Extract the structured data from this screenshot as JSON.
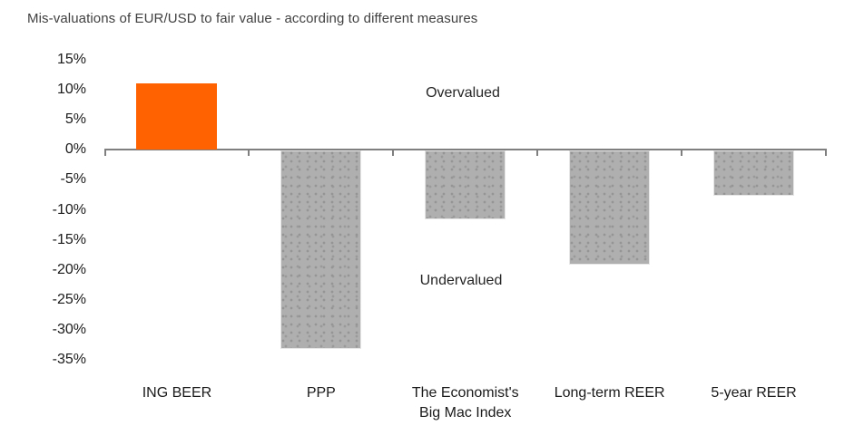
{
  "title": "Mis-valuations of EUR/USD to fair value - according to different measures",
  "annotations": {
    "overvalued": "Overvalued",
    "undervalued": "Undervalued"
  },
  "colors": {
    "highlight_bar": "#FF6200",
    "default_bar": "#ACACAC",
    "axis": "#7F7F7F",
    "title_text": "#404040",
    "axis_text": "#1A1A1A"
  },
  "chart_data": {
    "type": "bar",
    "title": "Mis-valuations of EUR/USD to fair value - according to different measures",
    "categories": [
      "ING BEER",
      "PPP",
      "The Economist's Big Mac Index",
      "Long-term REER",
      "5-year REER"
    ],
    "values": [
      11,
      -33,
      -11.5,
      -19,
      -7.5
    ],
    "value_unit": "%",
    "bar_colors": [
      "#FF6200",
      "#ACACAC",
      "#ACACAC",
      "#ACACAC",
      "#ACACAC"
    ],
    "gray_bar_texture": "dotted",
    "xlabel": "",
    "ylabel": "",
    "ylim": [
      -35,
      15
    ],
    "yticks": [
      15,
      10,
      5,
      0,
      -5,
      -10,
      -15,
      -20,
      -25,
      -30,
      -35
    ],
    "ytick_suffix": "%",
    "grid": false,
    "legend": false,
    "annotations": [
      {
        "text": "Overvalued",
        "region": "above-zero-line"
      },
      {
        "text": "Undervalued",
        "region": "below-zero-line"
      }
    ]
  }
}
